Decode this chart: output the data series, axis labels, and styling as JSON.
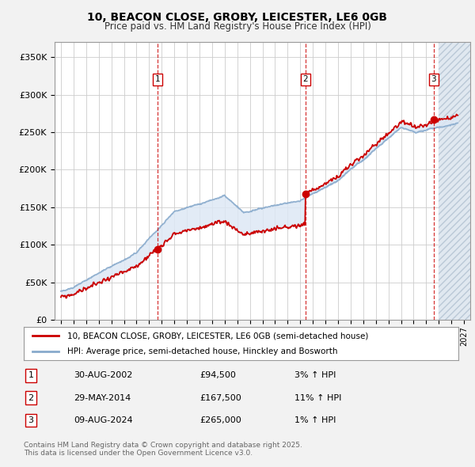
{
  "title": "10, BEACON CLOSE, GROBY, LEICESTER, LE6 0GB",
  "subtitle": "Price paid vs. HM Land Registry's House Price Index (HPI)",
  "bg_color": "#f2f2f2",
  "plot_bg_color": "#ffffff",
  "grid_color": "#cccccc",
  "sale_color": "#cc0000",
  "hpi_color": "#88aacc",
  "fill_color": "#dde8f5",
  "ylabel": "",
  "ylim": [
    0,
    370000
  ],
  "yticks": [
    0,
    50000,
    100000,
    150000,
    200000,
    250000,
    300000,
    350000
  ],
  "ytick_labels": [
    "£0",
    "£50K",
    "£100K",
    "£150K",
    "£200K",
    "£250K",
    "£300K",
    "£350K"
  ],
  "xlim_start": 1994.5,
  "xlim_end": 2027.5,
  "future_start": 2025.0,
  "sales": [
    {
      "date_num": 2002.66,
      "price": 94500,
      "label": "1"
    },
    {
      "date_num": 2014.41,
      "price": 167500,
      "label": "2"
    },
    {
      "date_num": 2024.6,
      "price": 265000,
      "label": "3"
    }
  ],
  "table_entries": [
    {
      "num": "1",
      "date": "30-AUG-2002",
      "price": "£94,500",
      "change": "3% ↑ HPI"
    },
    {
      "num": "2",
      "date": "29-MAY-2014",
      "price": "£167,500",
      "change": "11% ↑ HPI"
    },
    {
      "num": "3",
      "date": "09-AUG-2024",
      "price": "£265,000",
      "change": "1% ↑ HPI"
    }
  ],
  "legend_entries": [
    {
      "label": "10, BEACON CLOSE, GROBY, LEICESTER, LE6 0GB (semi-detached house)",
      "color": "#cc0000"
    },
    {
      "label": "HPI: Average price, semi-detached house, Hinckley and Bosworth",
      "color": "#88aacc"
    }
  ],
  "footnote": "Contains HM Land Registry data © Crown copyright and database right 2025.\nThis data is licensed under the Open Government Licence v3.0.",
  "vline_color": "#cc0000",
  "hpi_noise_std": 600,
  "prop_noise_std": 1800,
  "hpi_seed": 10,
  "prop_seed": 99
}
